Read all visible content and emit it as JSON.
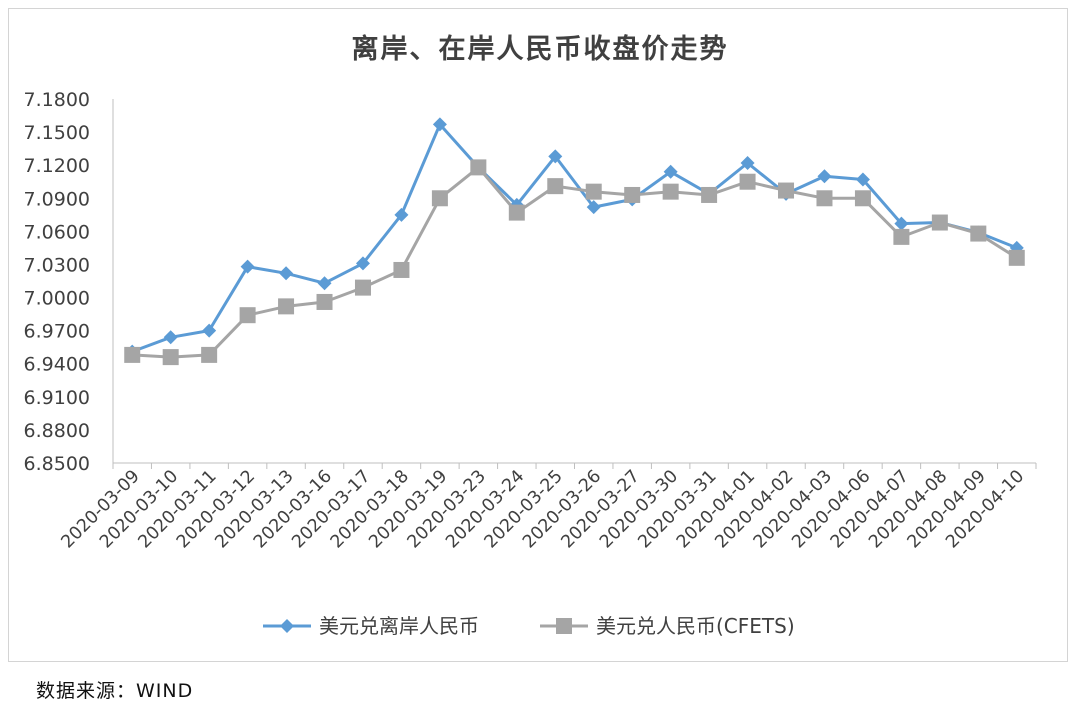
{
  "source_note": "数据来源：WIND",
  "chart_data": {
    "type": "line",
    "title": "离岸、在岸人民币收盘价走势",
    "xlabel": "",
    "ylabel": "",
    "ylim": [
      6.85,
      7.18
    ],
    "yticks": [
      "6.8500",
      "6.8800",
      "6.9100",
      "6.9400",
      "6.9700",
      "7.0000",
      "7.0300",
      "7.0600",
      "7.0900",
      "7.1200",
      "7.1500",
      "7.1800"
    ],
    "grid": false,
    "legend_position": "bottom",
    "categories": [
      "2020-03-09",
      "2020-03-10",
      "2020-03-11",
      "2020-03-12",
      "2020-03-13",
      "2020-03-16",
      "2020-03-17",
      "2020-03-18",
      "2020-03-19",
      "2020-03-23",
      "2020-03-24",
      "2020-03-25",
      "2020-03-26",
      "2020-03-27",
      "2020-03-30",
      "2020-03-31",
      "2020-04-01",
      "2020-04-02",
      "2020-04-03",
      "2020-04-06",
      "2020-04-07",
      "2020-04-08",
      "2020-04-09",
      "2020-04-10"
    ],
    "series": [
      {
        "name": "美元兑离岸人民币",
        "color": "#5b9bd5",
        "marker": "diamond",
        "values": [
          6.951,
          6.964,
          6.97,
          7.028,
          7.022,
          7.013,
          7.031,
          7.075,
          7.157,
          7.118,
          7.084,
          7.128,
          7.082,
          7.089,
          7.114,
          7.094,
          7.122,
          7.094,
          7.11,
          7.107,
          7.067,
          7.068,
          7.059,
          7.045
        ]
      },
      {
        "name": "美元兑人民币(CFETS)",
        "color": "#a5a5a5",
        "marker": "square",
        "values": [
          6.948,
          6.946,
          6.948,
          6.984,
          6.992,
          6.996,
          7.009,
          7.025,
          7.09,
          7.118,
          7.077,
          7.101,
          7.096,
          7.093,
          7.096,
          7.093,
          7.105,
          7.097,
          7.09,
          7.09,
          7.055,
          7.068,
          7.058,
          7.036
        ]
      }
    ]
  }
}
